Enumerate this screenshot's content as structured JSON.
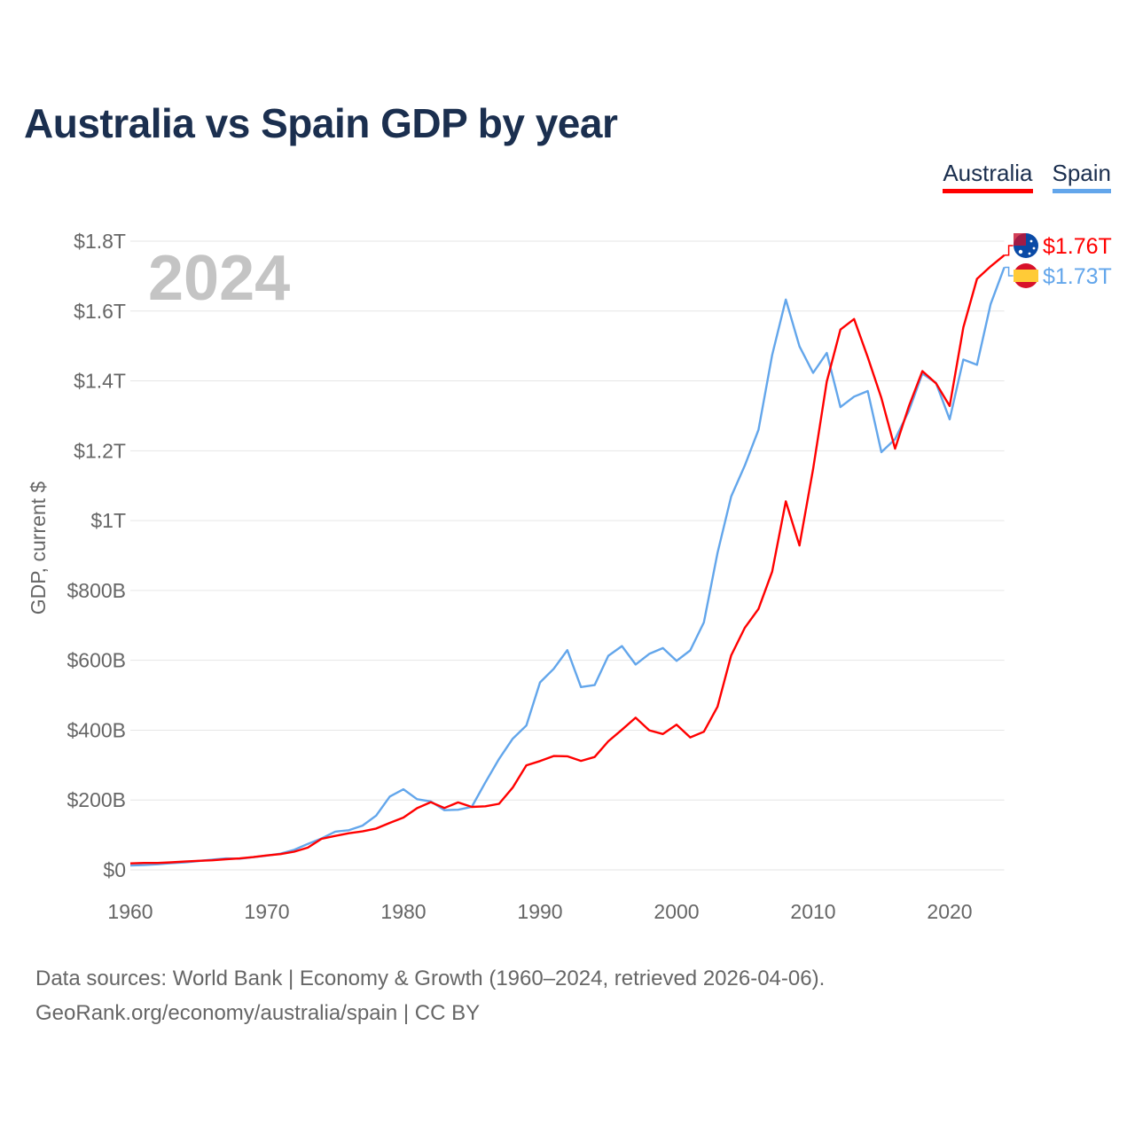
{
  "title": "Australia vs Spain GDP by year",
  "source_line1": "Data sources: World Bank | Economy & Growth (1960–2024, retrieved 2026-04-06).",
  "source_line2": "GeoRank.org/economy/australia/spain | CC BY",
  "chart_data": {
    "type": "line",
    "title": "Australia vs Spain GDP by year",
    "xlabel": "",
    "ylabel": "GDP, current $",
    "year_label": "2024",
    "xlim": [
      1960,
      2024
    ],
    "ylim": [
      0,
      1800
    ],
    "y_unit": "billion USD",
    "grid": true,
    "legend_position": "top-right",
    "x_ticks": [
      1960,
      1970,
      1980,
      1990,
      2000,
      2010,
      2020
    ],
    "x_tick_labels": [
      "1960",
      "1970",
      "1980",
      "1990",
      "2000",
      "2010",
      "2020"
    ],
    "y_ticks": [
      0,
      200,
      400,
      600,
      800,
      1000,
      1200,
      1400,
      1600,
      1800
    ],
    "y_tick_labels": [
      "$0",
      "$200B",
      "$400B",
      "$600B",
      "$800B",
      "$1T",
      "$1.2T",
      "$1.4T",
      "$1.6T",
      "$1.8T"
    ],
    "x_start": 1960,
    "series": [
      {
        "name": "Australia",
        "color": "#ff0000",
        "end_label": "$1.76T",
        "flag": "australia-flag",
        "values": [
          18.6,
          19.7,
          19.9,
          21.5,
          23.8,
          25.9,
          27.3,
          30.4,
          32.7,
          36.6,
          41.3,
          45.2,
          52.0,
          63.7,
          88.8,
          97.2,
          104.9,
          110.2,
          118.3,
          134.6,
          149.8,
          176.6,
          193.8,
          177.3,
          193.2,
          180.2,
          182.0,
          189.1,
          235.7,
          299.3,
          311.4,
          325.9,
          325.3,
          312.1,
          323.2,
          368.2,
          401.3,
          435.6,
          399.6,
          389.0,
          415.9,
          379.4,
          395.6,
          467.5,
          614.2,
          693.3,
          747.2,
          853.8,
          1055,
          928.8,
          1148,
          1398,
          1547,
          1577,
          1468,
          1351,
          1206,
          1326,
          1428,
          1393,
          1328,
          1553,
          1692,
          1728,
          1760
        ]
      },
      {
        "name": "Spain",
        "color": "#63a6eb",
        "end_label": "$1.73T",
        "flag": "spain-flag",
        "values": [
          12.4,
          13.8,
          16.1,
          19.2,
          21.7,
          25.5,
          29.4,
          32.8,
          32.1,
          36.3,
          40.9,
          46.4,
          57.3,
          74.4,
          89.9,
          109.3,
          113.6,
          126.6,
          155.4,
          210.0,
          230.7,
          202.3,
          195.9,
          170.9,
          172.1,
          180.3,
          250.6,
          317.6,
          375.6,
          413.4,
          536.6,
          575.6,
          629.2,
          523.6,
          529.1,
          612.9,
          640.9,
          588.1,
          618.5,
          634.9,
          598.4,
          628.3,
          708.7,
          907.5,
          1069,
          1158,
          1260,
          1474,
          1633,
          1499,
          1423,
          1480,
          1325,
          1355,
          1371,
          1196,
          1233,
          1313,
          1421,
          1394,
          1290,
          1461,
          1446,
          1620,
          1725
        ]
      }
    ]
  }
}
